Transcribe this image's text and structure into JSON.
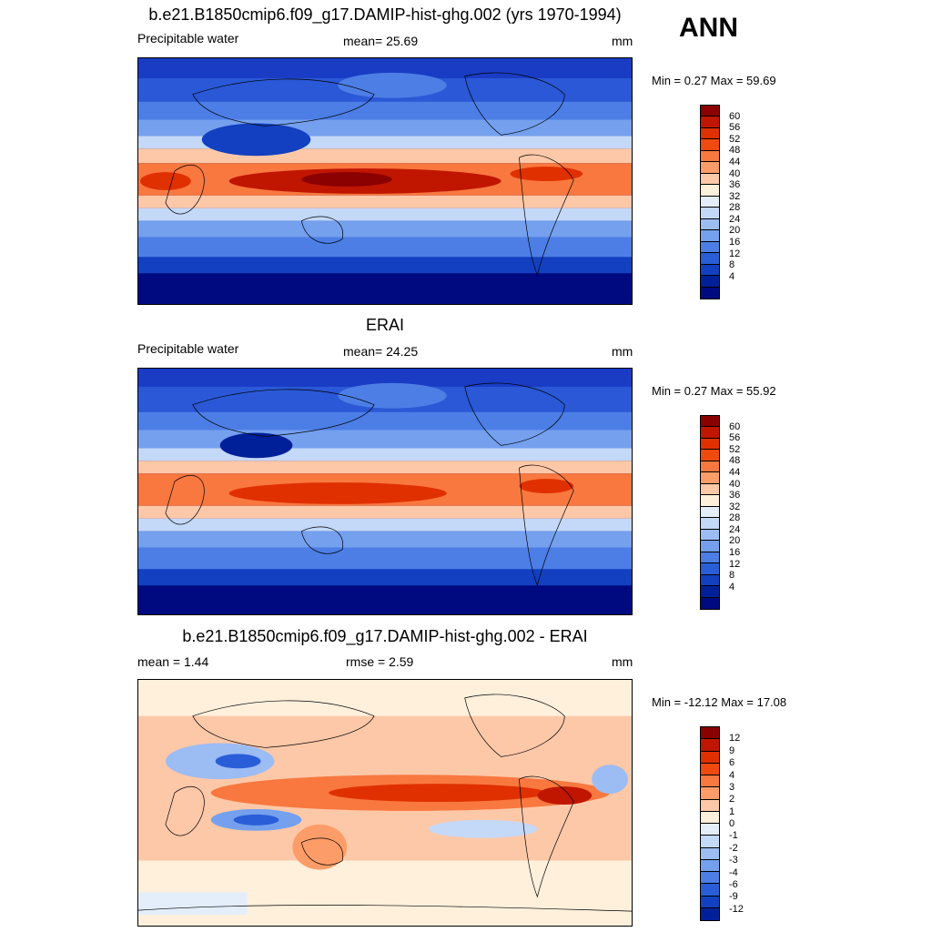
{
  "season": "ANN",
  "panels": [
    {
      "title": "b.e21.B1850cmip6.f09_g17.DAMIP-hist-ghg.002 (yrs 1970-1994)",
      "left_label": "Precipitable water",
      "center_label": "mean=  25.69",
      "units": "mm",
      "minmax": "Min =   0.27 Max =  59.69",
      "colorbar": {
        "colors": [
          "#8b0000",
          "#c01600",
          "#e03000",
          "#f04a10",
          "#f87840",
          "#fc9c68",
          "#fdc8a8",
          "#fff0dc",
          "#e4eefb",
          "#c4d8f8",
          "#9cbcf4",
          "#74a0ee",
          "#4c7ee6",
          "#2a5ed8",
          "#1240c0",
          "#00209a",
          "#000a80"
        ],
        "labels": [
          "60",
          "56",
          "52",
          "48",
          "44",
          "40",
          "36",
          "32",
          "28",
          "24",
          "20",
          "16",
          "12",
          "8",
          "4"
        ]
      }
    },
    {
      "title": "ERAI",
      "left_label": "Precipitable water",
      "center_label": "mean=  24.25",
      "units": "mm",
      "minmax": "Min =   0.27 Max =  55.92",
      "colorbar": {
        "colors": [
          "#8b0000",
          "#c01600",
          "#e03000",
          "#f04a10",
          "#f87840",
          "#fc9c68",
          "#fdc8a8",
          "#fff0dc",
          "#e4eefb",
          "#c4d8f8",
          "#9cbcf4",
          "#74a0ee",
          "#4c7ee6",
          "#2a5ed8",
          "#1240c0",
          "#00209a",
          "#000a80"
        ],
        "labels": [
          "60",
          "56",
          "52",
          "48",
          "44",
          "40",
          "36",
          "32",
          "28",
          "24",
          "20",
          "16",
          "12",
          "8",
          "4"
        ]
      }
    },
    {
      "title": "b.e21.B1850cmip6.f09_g17.DAMIP-hist-ghg.002 - ERAI",
      "left_label": "mean =   1.44",
      "center_label": "rmse =   2.59",
      "units": "mm",
      "minmax": "Min = -12.12 Max =  17.08",
      "colorbar": {
        "colors": [
          "#8b0000",
          "#c01600",
          "#e03000",
          "#f04a10",
          "#f87840",
          "#fc9c68",
          "#fdc8a8",
          "#fff0dc",
          "#e4eefb",
          "#c4d8f8",
          "#9cbcf4",
          "#74a0ee",
          "#4c7ee6",
          "#2a5ed8",
          "#1240c0",
          "#00209a"
        ],
        "labels": [
          "12",
          "9",
          "6",
          "4",
          "3",
          "2",
          "1",
          "0",
          "-1",
          "-2",
          "-3",
          "-4",
          "-6",
          "-9",
          "-12"
        ]
      }
    }
  ]
}
